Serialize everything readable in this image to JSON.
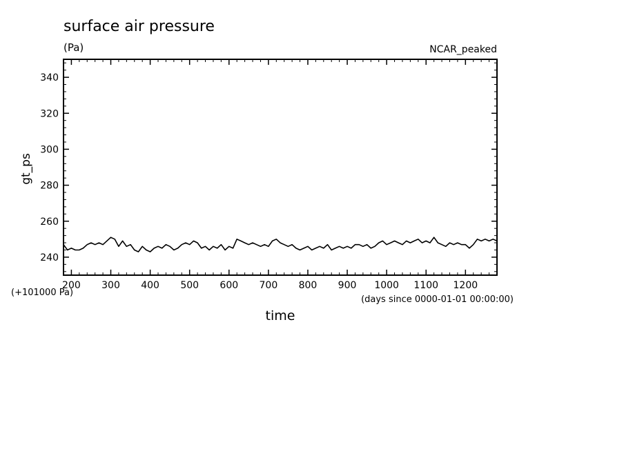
{
  "chart_data": {
    "type": "line",
    "title": "surface air pressure",
    "units": "(Pa)",
    "experiment": "NCAR_peaked",
    "xlabel": "time",
    "x_units": "(days since 0000-01-01 00:00:00)",
    "ylabel": "gt_ps",
    "y_offset_label": "(+101000 Pa)",
    "xlim": [
      180,
      1280
    ],
    "ylim": [
      230,
      350
    ],
    "x_ticks": [
      200,
      300,
      400,
      500,
      600,
      700,
      800,
      900,
      1000,
      1100,
      1200
    ],
    "y_ticks": [
      240,
      260,
      280,
      300,
      320,
      340
    ],
    "grid": false,
    "series": [
      {
        "color": "#000000",
        "points": [
          [
            180,
            247
          ],
          [
            190,
            244
          ],
          [
            200,
            245
          ],
          [
            210,
            244
          ],
          [
            220,
            244
          ],
          [
            230,
            245
          ],
          [
            240,
            247
          ],
          [
            250,
            248
          ],
          [
            260,
            247
          ],
          [
            270,
            248
          ],
          [
            280,
            247
          ],
          [
            290,
            249
          ],
          [
            300,
            251
          ],
          [
            310,
            250
          ],
          [
            320,
            246
          ],
          [
            330,
            249
          ],
          [
            340,
            246
          ],
          [
            350,
            247
          ],
          [
            360,
            244
          ],
          [
            370,
            243
          ],
          [
            380,
            246
          ],
          [
            390,
            244
          ],
          [
            400,
            243
          ],
          [
            410,
            245
          ],
          [
            420,
            246
          ],
          [
            430,
            245
          ],
          [
            440,
            247
          ],
          [
            450,
            246
          ],
          [
            460,
            244
          ],
          [
            470,
            245
          ],
          [
            480,
            247
          ],
          [
            490,
            248
          ],
          [
            500,
            247
          ],
          [
            510,
            249
          ],
          [
            520,
            248
          ],
          [
            530,
            245
          ],
          [
            540,
            246
          ],
          [
            550,
            244
          ],
          [
            560,
            246
          ],
          [
            570,
            245
          ],
          [
            580,
            247
          ],
          [
            590,
            244
          ],
          [
            600,
            246
          ],
          [
            610,
            245
          ],
          [
            620,
            250
          ],
          [
            630,
            249
          ],
          [
            640,
            248
          ],
          [
            650,
            247
          ],
          [
            660,
            248
          ],
          [
            670,
            247
          ],
          [
            680,
            246
          ],
          [
            690,
            247
          ],
          [
            700,
            246
          ],
          [
            710,
            249
          ],
          [
            720,
            250
          ],
          [
            730,
            248
          ],
          [
            740,
            247
          ],
          [
            750,
            246
          ],
          [
            760,
            247
          ],
          [
            770,
            245
          ],
          [
            780,
            244
          ],
          [
            790,
            245
          ],
          [
            800,
            246
          ],
          [
            810,
            244
          ],
          [
            820,
            245
          ],
          [
            830,
            246
          ],
          [
            840,
            245
          ],
          [
            850,
            247
          ],
          [
            860,
            244
          ],
          [
            870,
            245
          ],
          [
            880,
            246
          ],
          [
            890,
            245
          ],
          [
            900,
            246
          ],
          [
            910,
            245
          ],
          [
            920,
            247
          ],
          [
            930,
            247
          ],
          [
            940,
            246
          ],
          [
            950,
            247
          ],
          [
            960,
            245
          ],
          [
            970,
            246
          ],
          [
            980,
            248
          ],
          [
            990,
            249
          ],
          [
            1000,
            247
          ],
          [
            1010,
            248
          ],
          [
            1020,
            249
          ],
          [
            1030,
            248
          ],
          [
            1040,
            247
          ],
          [
            1050,
            249
          ],
          [
            1060,
            248
          ],
          [
            1070,
            249
          ],
          [
            1080,
            250
          ],
          [
            1090,
            248
          ],
          [
            1100,
            249
          ],
          [
            1110,
            248
          ],
          [
            1120,
            251
          ],
          [
            1130,
            248
          ],
          [
            1140,
            247
          ],
          [
            1150,
            246
          ],
          [
            1160,
            248
          ],
          [
            1170,
            247
          ],
          [
            1180,
            248
          ],
          [
            1190,
            247
          ],
          [
            1200,
            247
          ],
          [
            1210,
            245
          ],
          [
            1220,
            247
          ],
          [
            1230,
            250
          ],
          [
            1240,
            249
          ],
          [
            1250,
            250
          ],
          [
            1260,
            249
          ],
          [
            1270,
            250
          ],
          [
            1280,
            249
          ]
        ]
      }
    ]
  }
}
